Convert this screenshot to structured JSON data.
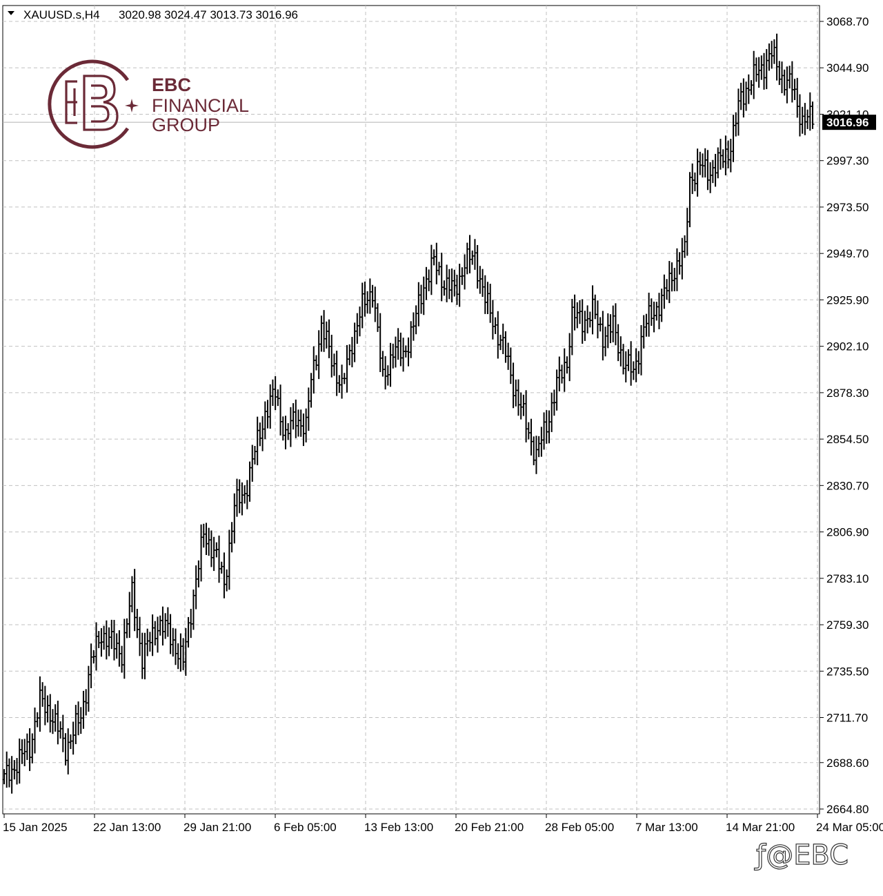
{
  "header": {
    "symbol": "XAUUSD.s,H4",
    "ohlc": "3020.98 3024.47 3013.73 3016.96"
  },
  "logo": {
    "line1": "EBC",
    "line2": "FINANCIAL",
    "line3": "GROUP"
  },
  "watermark": "ƒ@EBC",
  "current_price_label": "3016.96",
  "colors": {
    "bars": "#000000",
    "grid": "#c0c0c0",
    "brand": "#6b2a37",
    "badge": "#000000"
  },
  "chart_data": {
    "type": "ohlc",
    "title": "",
    "symbol": "XAUUSD.s",
    "timeframe": "H4",
    "ylim": [
      2664.8,
      3068.7
    ],
    "yticks": [
      3068.7,
      3044.9,
      3021.1,
      2997.3,
      2973.5,
      2949.7,
      2925.9,
      2902.1,
      2878.3,
      2854.5,
      2830.7,
      2806.9,
      2783.1,
      2759.3,
      2735.5,
      2711.7,
      2688.6,
      2664.8
    ],
    "ytick_labels": [
      "3068.70",
      "3044.90",
      "3021.10",
      "2997.30",
      "2973.50",
      "2949.70",
      "2925.90",
      "2902.10",
      "2878.30",
      "2854.50",
      "2830.70",
      "2806.90",
      "2783.10",
      "2759.30",
      "2735.50",
      "2711.70",
      "2688.60",
      "2664.80"
    ],
    "xtick_labels": [
      "15 Jan 2025",
      "22 Jan 13:00",
      "29 Jan 21:00",
      "6 Feb 05:00",
      "13 Feb 13:00",
      "20 Feb 21:00",
      "28 Feb 05:00",
      "7 Mar 13:00",
      "14 Mar 21:00",
      "24 Mar 05:00"
    ],
    "last_price": 3016.96,
    "grid": true,
    "close_path": [
      [
        0,
        2680
      ],
      [
        10,
        2697
      ],
      [
        14,
        2720
      ],
      [
        18,
        2715
      ],
      [
        24,
        2696
      ],
      [
        30,
        2712
      ],
      [
        34,
        2740
      ],
      [
        38,
        2755
      ],
      [
        42,
        2750
      ],
      [
        46,
        2745
      ],
      [
        50,
        2775
      ],
      [
        54,
        2742
      ],
      [
        60,
        2760
      ],
      [
        64,
        2756
      ],
      [
        70,
        2740
      ],
      [
        74,
        2775
      ],
      [
        78,
        2805
      ],
      [
        82,
        2798
      ],
      [
        86,
        2780
      ],
      [
        90,
        2820
      ],
      [
        94,
        2827
      ],
      [
        98,
        2848
      ],
      [
        102,
        2868
      ],
      [
        106,
        2878
      ],
      [
        110,
        2856
      ],
      [
        114,
        2866
      ],
      [
        118,
        2860
      ],
      [
        120,
        2885
      ],
      [
        124,
        2912
      ],
      [
        128,
        2896
      ],
      [
        132,
        2880
      ],
      [
        136,
        2905
      ],
      [
        140,
        2922
      ],
      [
        144,
        2932
      ],
      [
        148,
        2885
      ],
      [
        152,
        2900
      ],
      [
        156,
        2898
      ],
      [
        160,
        2912
      ],
      [
        164,
        2934
      ],
      [
        168,
        2945
      ],
      [
        172,
        2935
      ],
      [
        176,
        2930
      ],
      [
        180,
        2945
      ],
      [
        184,
        2948
      ],
      [
        188,
        2926
      ],
      [
        192,
        2912
      ],
      [
        196,
        2898
      ],
      [
        200,
        2878
      ],
      [
        204,
        2862
      ],
      [
        208,
        2846
      ],
      [
        212,
        2862
      ],
      [
        216,
        2882
      ],
      [
        220,
        2895
      ],
      [
        222,
        2918
      ],
      [
        226,
        2915
      ],
      [
        230,
        2920
      ],
      [
        234,
        2908
      ],
      [
        238,
        2912
      ],
      [
        242,
        2895
      ],
      [
        246,
        2888
      ],
      [
        250,
        2912
      ],
      [
        254,
        2920
      ],
      [
        258,
        2928
      ],
      [
        262,
        2942
      ],
      [
        266,
        2950
      ],
      [
        268,
        2988
      ],
      [
        272,
        2994
      ],
      [
        276,
        2992
      ],
      [
        280,
        2997
      ],
      [
        284,
        3005
      ],
      [
        288,
        3030
      ],
      [
        292,
        3038
      ],
      [
        296,
        3045
      ],
      [
        300,
        3052
      ],
      [
        304,
        3040
      ],
      [
        308,
        3035
      ],
      [
        312,
        3018
      ],
      [
        316,
        3019
      ]
    ]
  }
}
